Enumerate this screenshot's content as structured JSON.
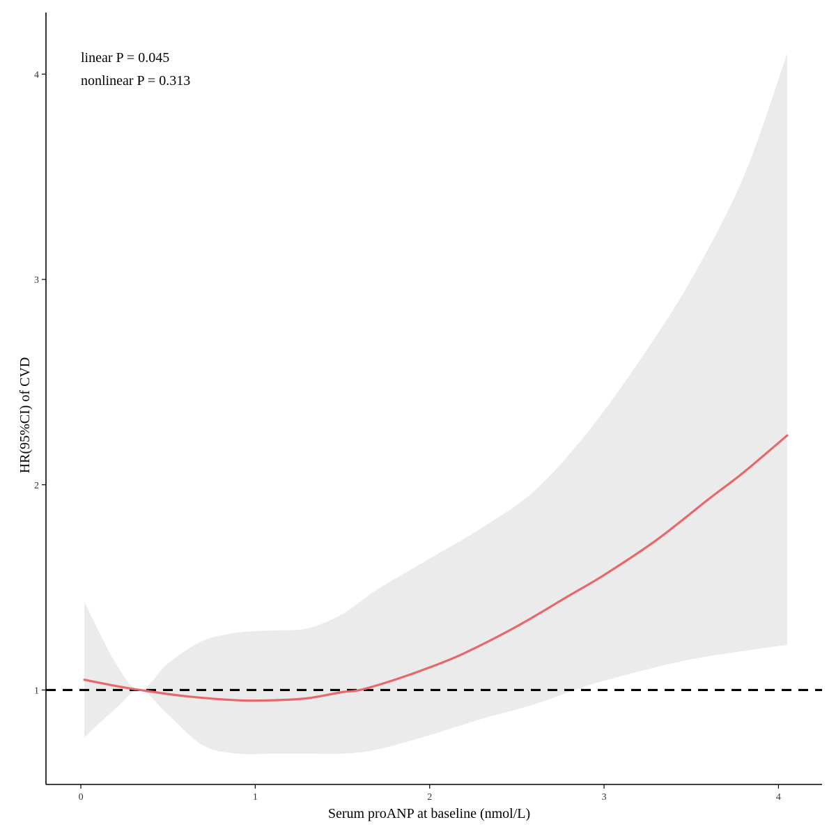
{
  "chart_data": {
    "type": "line",
    "title": "",
    "xlabel": "Serum proANP at baseline (nmol/L)",
    "ylabel": "HR(95%CI) of CVD",
    "xlim": [
      -0.2,
      4.25
    ],
    "ylim": [
      0.54,
      4.3
    ],
    "xticks": [
      0,
      1,
      2,
      3,
      4
    ],
    "xtick_labels": [
      "0",
      "1",
      "2",
      "3",
      "4"
    ],
    "yticks": [
      1,
      2,
      3,
      4
    ],
    "ytick_labels": [
      "1",
      "2",
      "3",
      "4"
    ],
    "grid": false,
    "legend": "none",
    "reference_line": {
      "y": 1,
      "style": "dashed",
      "color": "#000000"
    },
    "annotations": [
      "linear P = 0.045",
      "nonlinear P = 0.313"
    ],
    "series": [
      {
        "name": "HR",
        "color": "#E8676A",
        "x": [
          0.02,
          0.2,
          0.34,
          0.6,
          0.9,
          1.1,
          1.3,
          1.5,
          1.6,
          1.8,
          2.0,
          2.2,
          2.5,
          2.8,
          3.0,
          3.3,
          3.6,
          3.8,
          4.05
        ],
        "y": [
          1.05,
          1.02,
          1.0,
          0.97,
          0.95,
          0.95,
          0.96,
          0.99,
          1.0,
          1.05,
          1.11,
          1.18,
          1.31,
          1.46,
          1.56,
          1.73,
          1.93,
          2.06,
          2.24
        ]
      }
    ],
    "ci_band": {
      "color": "#EBEBEB",
      "x": [
        0.02,
        0.2,
        0.34,
        0.5,
        0.7,
        0.9,
        1.1,
        1.3,
        1.5,
        1.7,
        2.0,
        2.3,
        2.6,
        2.9,
        3.2,
        3.5,
        3.8,
        4.05
      ],
      "upper": [
        1.43,
        1.13,
        1.0,
        1.13,
        1.24,
        1.28,
        1.29,
        1.3,
        1.37,
        1.49,
        1.64,
        1.79,
        1.97,
        2.25,
        2.6,
        3.0,
        3.5,
        4.1
      ],
      "lower": [
        0.77,
        0.91,
        1.0,
        0.88,
        0.73,
        0.69,
        0.69,
        0.69,
        0.69,
        0.71,
        0.78,
        0.86,
        0.93,
        1.02,
        1.09,
        1.15,
        1.19,
        1.22
      ]
    }
  }
}
